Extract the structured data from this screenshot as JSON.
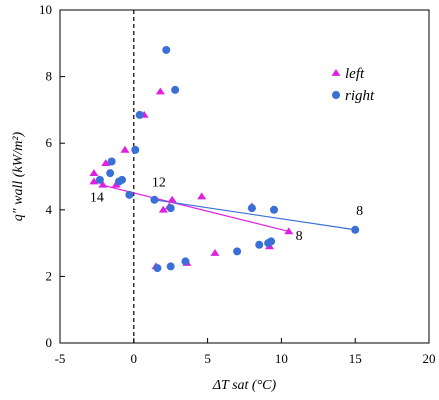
{
  "chart_data": {
    "type": "scatter",
    "title": "",
    "xlabel": "ΔT sat (°C)",
    "ylabel": "q\" wall (kW/m²)",
    "xlim": [
      -5,
      20
    ],
    "ylim": [
      0,
      10
    ],
    "xticks": [
      -5,
      0,
      5,
      10,
      15,
      20
    ],
    "yticks": [
      0,
      2,
      4,
      6,
      8,
      10
    ],
    "xtick_labels": [
      "-5",
      "0",
      "5",
      "10",
      "15",
      "20"
    ],
    "ytick_labels": [
      "0",
      "2",
      "4",
      "6",
      "8",
      "10"
    ],
    "grid": false,
    "legend_position": "top-right",
    "reference_line_x": 0,
    "series": [
      {
        "name": "left",
        "marker": "triangle",
        "color": "#e020e0",
        "points": [
          [
            -2.7,
            4.85
          ],
          [
            -2.7,
            5.1
          ],
          [
            -2.1,
            4.75
          ],
          [
            -1.9,
            5.4
          ],
          [
            -0.6,
            5.8
          ],
          [
            -1.2,
            4.75
          ],
          [
            0.7,
            6.85
          ],
          [
            1.8,
            7.55
          ],
          [
            1.5,
            2.3
          ],
          [
            2.0,
            4.0
          ],
          [
            2.4,
            4.1
          ],
          [
            2.6,
            4.3
          ],
          [
            3.6,
            2.4
          ],
          [
            4.6,
            4.4
          ],
          [
            5.5,
            2.7
          ],
          [
            8.0,
            4.1
          ],
          [
            9.2,
            2.9
          ],
          [
            10.5,
            3.35
          ]
        ]
      },
      {
        "name": "right",
        "marker": "circle",
        "color": "#3a6fd8",
        "points": [
          [
            -2.3,
            4.9
          ],
          [
            -1.6,
            5.1
          ],
          [
            -1.5,
            5.45
          ],
          [
            -1.0,
            4.85
          ],
          [
            -0.8,
            4.9
          ],
          [
            -0.3,
            4.45
          ],
          [
            0.1,
            5.8
          ],
          [
            0.4,
            6.85
          ],
          [
            1.4,
            4.3
          ],
          [
            1.6,
            2.25
          ],
          [
            2.2,
            8.8
          ],
          [
            2.5,
            2.3
          ],
          [
            2.5,
            4.05
          ],
          [
            2.8,
            7.6
          ],
          [
            3.5,
            2.45
          ],
          [
            7.0,
            2.75
          ],
          [
            8.0,
            4.05
          ],
          [
            8.5,
            2.95
          ],
          [
            9.1,
            3.0
          ],
          [
            9.3,
            3.05
          ],
          [
            9.5,
            4.0
          ],
          [
            15.0,
            3.4
          ]
        ]
      }
    ],
    "trend_lines": [
      {
        "series": "left",
        "from": [
          -2.2,
          4.75
        ],
        "to": [
          10.5,
          3.35
        ]
      },
      {
        "series": "right",
        "from": [
          1.4,
          4.3
        ],
        "to": [
          15.0,
          3.4
        ]
      }
    ],
    "annotations": [
      {
        "text": "14",
        "x": -2.5,
        "y": 4.25
      },
      {
        "text": "12",
        "x": 1.7,
        "y": 4.7
      },
      {
        "text": "8",
        "x": 11.2,
        "y": 3.1
      },
      {
        "text": "8",
        "x": 15.3,
        "y": 3.85
      }
    ]
  },
  "colors": {
    "left": "#e020e0",
    "right": "#3a6fd8",
    "axis": "#000000"
  }
}
